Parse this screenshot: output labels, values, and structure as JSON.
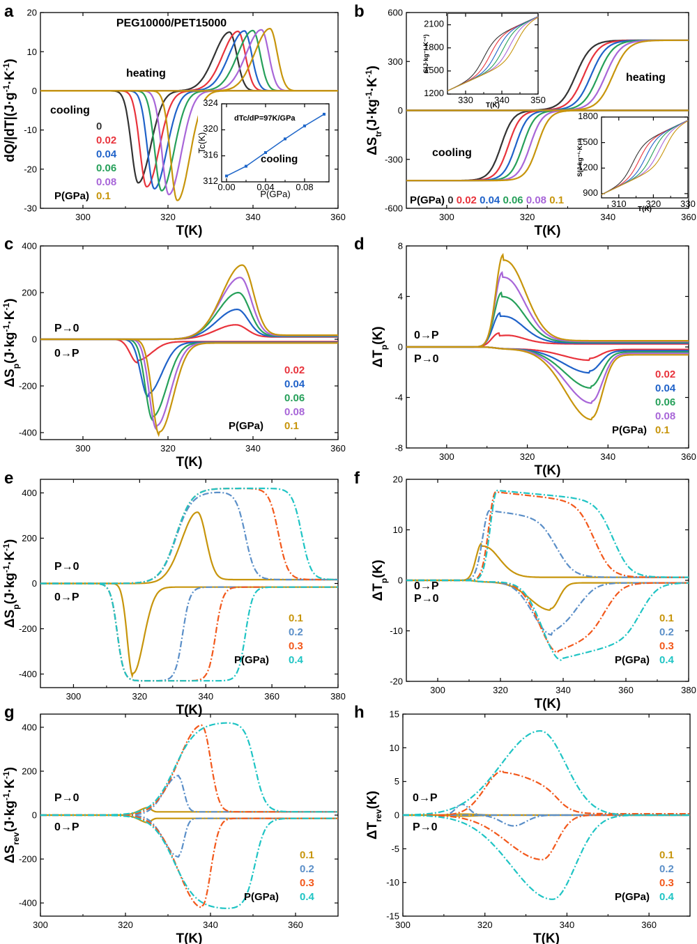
{
  "colors": {
    "p0": "#333333",
    "p002": "#e8333c",
    "p004": "#1f62c9",
    "p006": "#26a05a",
    "p008": "#a866d8",
    "p01": "#c7950c",
    "p02": "#5b8fc8",
    "p03": "#f2581b",
    "p04": "#1fc4c4",
    "inset_line": "#1e66c9"
  },
  "chart_data": [
    {
      "id": "a",
      "panel_label": "a",
      "type": "line",
      "title": "PEG10000/PET15000",
      "xlabel": "T(K)",
      "ylabel": "dQ/|dT|(J·g⁻¹·K⁻¹)",
      "xlim": [
        290,
        360
      ],
      "ylim": [
        -30,
        20
      ],
      "xticks": [
        300,
        320,
        340,
        360
      ],
      "yticks": [
        -30,
        -20,
        -10,
        0,
        10,
        20
      ],
      "annotations": [
        "heating",
        "cooling"
      ],
      "legend_title": "P(GPa)",
      "series": [
        {
          "name": "0",
          "heating_peak": [
            334.5,
            15.0
          ],
          "cooling_peak": [
            313.0,
            -23.5
          ]
        },
        {
          "name": "0.02",
          "heating_peak": [
            336.5,
            15.2
          ],
          "cooling_peak": [
            315.0,
            -24.5
          ]
        },
        {
          "name": "0.04",
          "heating_peak": [
            338.0,
            15.3
          ],
          "cooling_peak": [
            316.8,
            -25.0
          ]
        },
        {
          "name": "0.06",
          "heating_peak": [
            340.0,
            15.4
          ],
          "cooling_peak": [
            318.5,
            -25.5
          ]
        },
        {
          "name": "0.08",
          "heating_peak": [
            342.0,
            15.6
          ],
          "cooling_peak": [
            320.2,
            -26.5
          ]
        },
        {
          "name": "0.1",
          "heating_peak": [
            344.0,
            15.9
          ],
          "cooling_peak": [
            322.2,
            -28.0
          ]
        }
      ],
      "inset": {
        "annotation": "dTc/dP=97K/GPa",
        "label": "cooling",
        "xlabel": "P(GPa)",
        "ylabel": "Tc(K)",
        "xlim": [
          -0.005,
          0.105
        ],
        "ylim": [
          312,
          324
        ],
        "xticks": [
          0.0,
          0.04,
          0.08
        ],
        "yticks": [
          312,
          316,
          320,
          324
        ],
        "points": [
          [
            0.0,
            312.9
          ],
          [
            0.02,
            314.4
          ],
          [
            0.04,
            316.5
          ],
          [
            0.06,
            318.6
          ],
          [
            0.08,
            320.6
          ],
          [
            0.1,
            322.4
          ]
        ]
      }
    },
    {
      "id": "b",
      "panel_label": "b",
      "type": "line",
      "xlabel": "T(K)",
      "ylabel": "ΔStr(J·kg⁻¹·K⁻¹)",
      "xlim": [
        290,
        360
      ],
      "ylim": [
        -600,
        600
      ],
      "xticks": [
        300,
        320,
        340,
        360
      ],
      "yticks": [
        -600,
        -300,
        0,
        300,
        600
      ],
      "annotations": [
        "heating",
        "cooling"
      ],
      "legend_title": "P(GPa)",
      "series": [
        {
          "name": "0",
          "heating_mid": 332.0,
          "cooling_mid": 313.5
        },
        {
          "name": "0.02",
          "heating_mid": 334.0,
          "cooling_mid": 315.3
        },
        {
          "name": "0.04",
          "heating_mid": 335.8,
          "cooling_mid": 317.1
        },
        {
          "name": "0.06",
          "heating_mid": 337.6,
          "cooling_mid": 318.9
        },
        {
          "name": "0.08",
          "heating_mid": 339.4,
          "cooling_mid": 320.7
        },
        {
          "name": "0.1",
          "heating_mid": 341.2,
          "cooling_mid": 322.5
        }
      ],
      "inset_heating": {
        "xlabel": "T(K)",
        "ylabel": "S(J·kg⁻¹·K⁻¹)",
        "xlim": [
          325,
          350
        ],
        "ylim": [
          1200,
          2250
        ],
        "xticks": [
          330,
          340,
          350
        ],
        "yticks": [
          1200,
          1500,
          1800,
          2100
        ]
      },
      "inset_cooling": {
        "xlabel": "T(K)",
        "ylabel": "S(J·kg⁻¹·K⁻¹)",
        "xlim": [
          305,
          330
        ],
        "ylim": [
          850,
          1800
        ],
        "xticks": [
          310,
          320,
          330
        ],
        "yticks": [
          900,
          1200,
          1500,
          1800
        ]
      }
    },
    {
      "id": "c",
      "panel_label": "c",
      "type": "line",
      "xlabel": "T(K)",
      "ylabel": "ΔSp(J·kg⁻¹·K⁻¹)",
      "xlim": [
        290,
        360
      ],
      "ylim": [
        -430,
        400
      ],
      "xticks": [
        300,
        320,
        340,
        360
      ],
      "yticks": [
        -400,
        -200,
        0,
        200,
        400
      ],
      "annotations": [
        "P→0",
        "0→P"
      ],
      "legend_title": "P(GPa)",
      "series": [
        {
          "name": "0.02",
          "pos_peak": [
            336.0,
            62
          ],
          "neg_peak": [
            312.8,
            -100
          ]
        },
        {
          "name": "0.04",
          "pos_peak": [
            336.3,
            128
          ],
          "neg_peak": [
            315.3,
            -245
          ]
        },
        {
          "name": "0.06",
          "pos_peak": [
            336.6,
            200
          ],
          "neg_peak": [
            316.4,
            -345
          ]
        },
        {
          "name": "0.08",
          "pos_peak": [
            337.0,
            265
          ],
          "neg_peak": [
            317.3,
            -385
          ]
        },
        {
          "name": "0.1",
          "pos_peak": [
            337.5,
            318
          ],
          "neg_peak": [
            318.0,
            -412
          ]
        }
      ]
    },
    {
      "id": "d",
      "panel_label": "d",
      "type": "line",
      "xlabel": "T(K)",
      "ylabel": "ΔTp(K)",
      "xlim": [
        290,
        360
      ],
      "ylim": [
        -8,
        8
      ],
      "xticks": [
        300,
        320,
        340,
        360
      ],
      "yticks": [
        -8,
        -4,
        0,
        4,
        8
      ],
      "annotations": [
        "0→P",
        "P→0"
      ],
      "legend_title": "P(GPa)",
      "series": [
        {
          "name": "0.02",
          "pos_peak": [
            313.0,
            1.1
          ],
          "neg_peak": [
            335.5,
            -0.9
          ]
        },
        {
          "name": "0.04",
          "pos_peak": [
            313.3,
            2.7
          ],
          "neg_peak": [
            335.5,
            -1.9
          ]
        },
        {
          "name": "0.06",
          "pos_peak": [
            313.6,
            4.3
          ],
          "neg_peak": [
            335.8,
            -3.1
          ]
        },
        {
          "name": "0.08",
          "pos_peak": [
            313.8,
            5.9
          ],
          "neg_peak": [
            336.0,
            -4.3
          ]
        },
        {
          "name": "0.1",
          "pos_peak": [
            314.0,
            7.3
          ],
          "neg_peak": [
            336.0,
            -5.6
          ]
        }
      ]
    },
    {
      "id": "e",
      "panel_label": "e",
      "type": "line",
      "xlabel": "T(K)",
      "ylabel": "ΔSp(J·kg⁻¹·K⁻¹)",
      "xlim": [
        290,
        380
      ],
      "ylim": [
        -460,
        460
      ],
      "xticks": [
        300,
        320,
        340,
        360,
        380
      ],
      "yticks": [
        -400,
        -200,
        0,
        200,
        400
      ],
      "annotations": [
        "P→0",
        "0→P"
      ],
      "legend_title": "P(GPa)",
      "series": [
        {
          "name": "0.1",
          "style": "solid",
          "pos_peak": [
            337.5,
            315
          ],
          "neg_peak": [
            318.0,
            -412
          ]
        },
        {
          "name": "0.2",
          "style": "dashdot",
          "pos_plateau": 405,
          "pos_end": 352,
          "neg_plateau": -430,
          "neg_end": 333
        },
        {
          "name": "0.3",
          "style": "dashdot",
          "pos_plateau": 420,
          "pos_end": 362,
          "neg_plateau": -430,
          "neg_end": 343
        },
        {
          "name": "0.4",
          "style": "dashdot",
          "pos_plateau": 420,
          "pos_end": 369,
          "neg_plateau": -430,
          "neg_end": 352
        }
      ]
    },
    {
      "id": "f",
      "panel_label": "f",
      "type": "line",
      "xlabel": "T(K)",
      "ylabel": "ΔTp(K)",
      "xlim": [
        290,
        380
      ],
      "ylim": [
        -20,
        20
      ],
      "xticks": [
        300,
        320,
        340,
        360,
        380
      ],
      "yticks": [
        -20,
        -10,
        0,
        10,
        20
      ],
      "annotations": [
        "0→P",
        "P→0"
      ],
      "legend_title": "P(GPa)",
      "series": [
        {
          "name": "0.1",
          "style": "solid",
          "pos_peak": [
            314.0,
            7.3
          ],
          "neg_peak": [
            336.0,
            -5.6
          ]
        },
        {
          "name": "0.2",
          "style": "dashdot",
          "pos_peak": [
            316.5,
            13.8
          ],
          "neg_peak": [
            336.5,
            -10.5
          ]
        },
        {
          "name": "0.3",
          "style": "dashdot",
          "pos_peak": [
            318.5,
            17.5
          ],
          "neg_peak": [
            338.5,
            -14.0
          ]
        },
        {
          "name": "0.4",
          "style": "dashdot",
          "pos_peak": [
            319.0,
            17.8
          ],
          "neg_peak": [
            339.5,
            -15.5
          ]
        }
      ]
    },
    {
      "id": "g",
      "panel_label": "g",
      "type": "line",
      "xlabel": "T(K)",
      "ylabel": "ΔSrev(J·kg⁻¹·K⁻¹)",
      "xlim": [
        300,
        370
      ],
      "ylim": [
        -460,
        460
      ],
      "xticks": [
        300,
        320,
        340,
        360
      ],
      "yticks": [
        -400,
        -200,
        0,
        200,
        400
      ],
      "annotations": [
        "P→0",
        "0→P"
      ],
      "legend_title": "P(GPa)",
      "series": [
        {
          "name": "0.1",
          "style": "solid",
          "pos_peak": [
            325.5,
            35
          ],
          "neg_peak": [
            325.5,
            -35
          ]
        },
        {
          "name": "0.2",
          "style": "dashdot",
          "pos_peak": [
            332.5,
            180
          ],
          "neg_peak": [
            332.5,
            -190
          ]
        },
        {
          "name": "0.3",
          "style": "dashdot",
          "pos_peak": [
            338.0,
            410
          ],
          "neg_peak": [
            338.0,
            -420
          ]
        },
        {
          "name": "0.4",
          "style": "dashdot",
          "pos_plateau": 425,
          "neg_plateau": -430
        }
      ]
    },
    {
      "id": "h",
      "panel_label": "h",
      "type": "line",
      "xlabel": "T(K)",
      "ylabel": "ΔTrev(K)",
      "xlim": [
        300,
        370
      ],
      "ylim": [
        -15,
        15
      ],
      "xticks": [
        300,
        320,
        340,
        360
      ],
      "yticks": [
        -15,
        -10,
        -5,
        0,
        5,
        10,
        15
      ],
      "annotations": [
        "0→P",
        "P→0"
      ],
      "legend_title": "P(GPa)",
      "series": [
        {
          "name": "0.1",
          "style": "solid",
          "pos_peak": [
            315.0,
            0.2
          ],
          "neg_peak": [
            315.0,
            -0.2
          ]
        },
        {
          "name": "0.2",
          "style": "dashdot",
          "pos_peak": [
            314.5,
            1.6
          ],
          "neg_peak": [
            327.0,
            -1.6
          ]
        },
        {
          "name": "0.3",
          "style": "dashdot",
          "pos_peak": [
            324.5,
            6.6
          ],
          "neg_peak": [
            334.0,
            -6.6
          ]
        },
        {
          "name": "0.4",
          "style": "dashdot",
          "pos_peak": [
            333.5,
            12.5
          ],
          "neg_peak": [
            336.5,
            -12.5
          ]
        }
      ]
    }
  ]
}
